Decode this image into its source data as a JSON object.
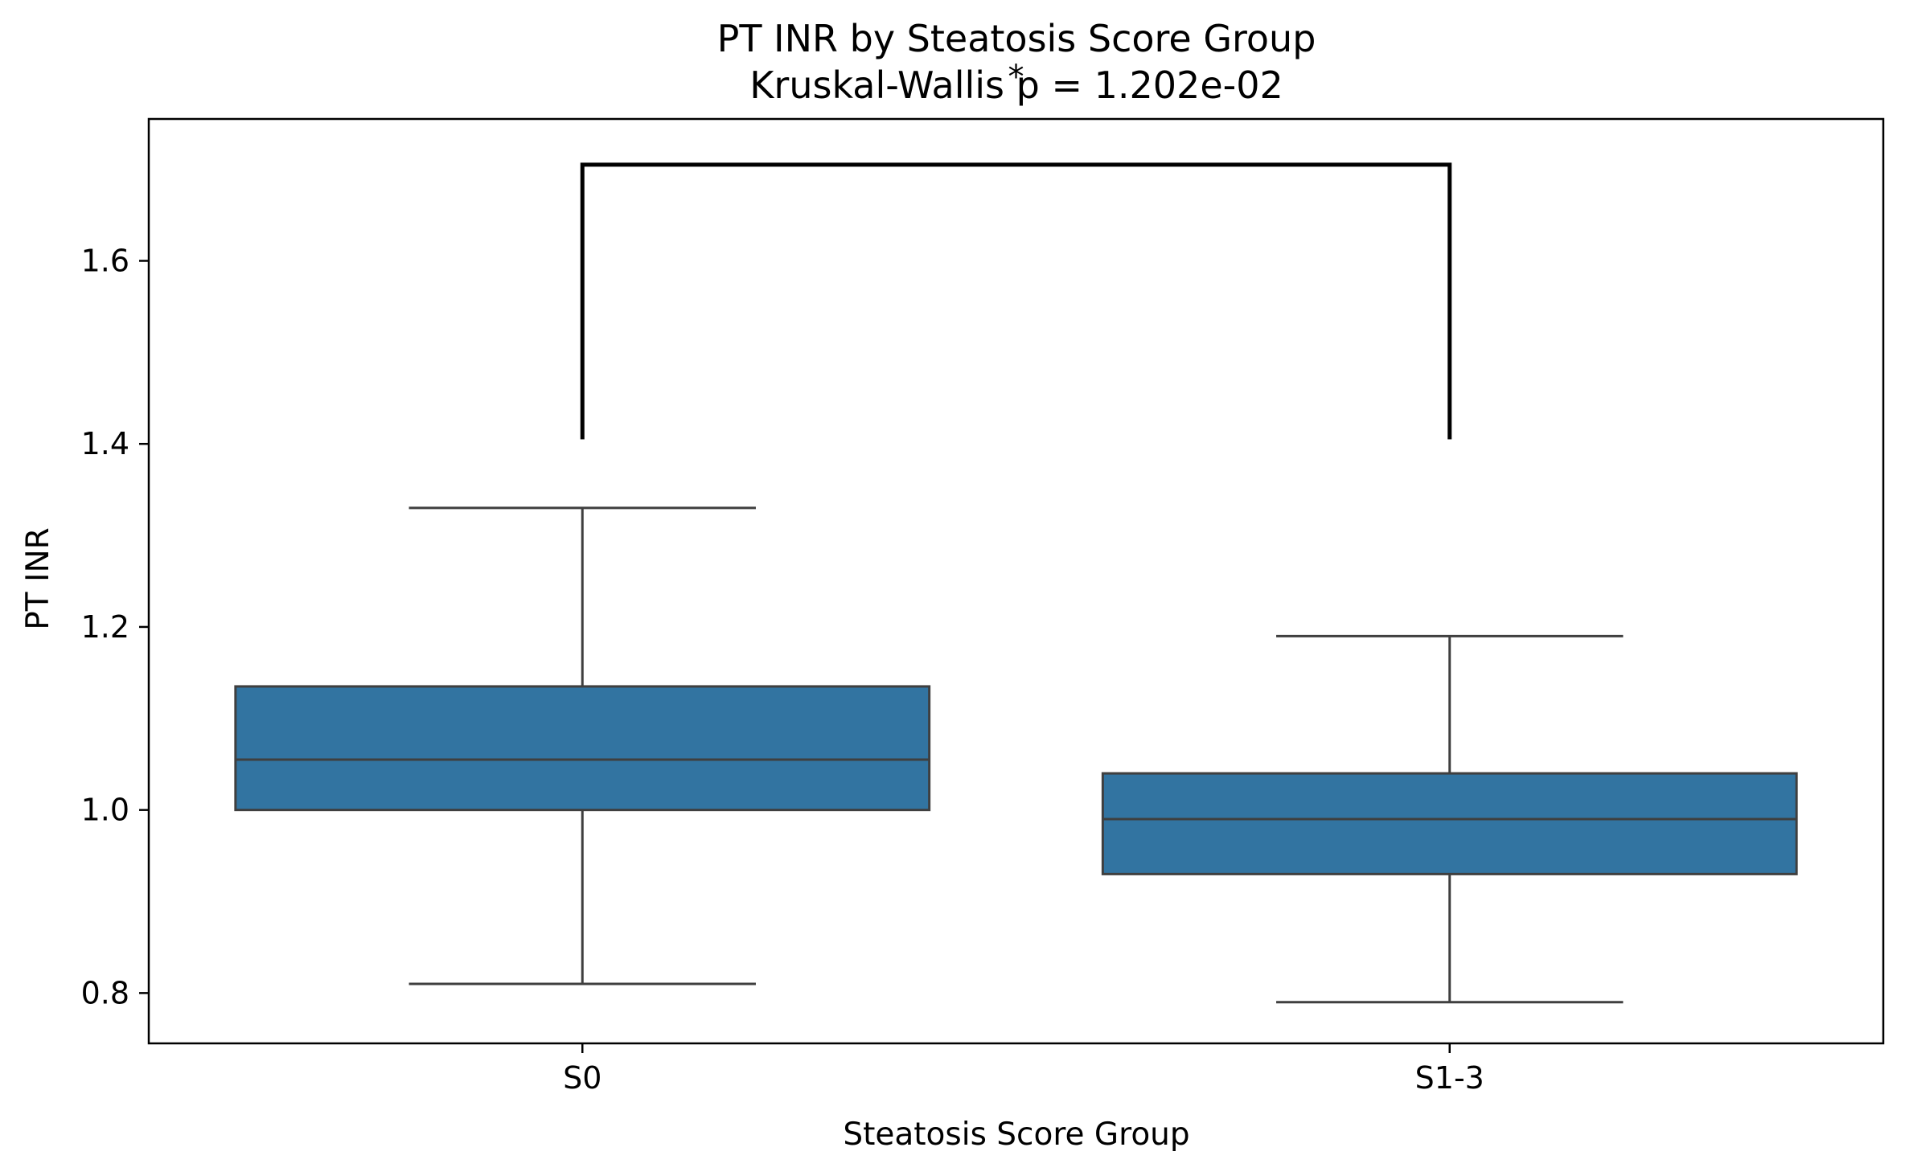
{
  "chart_data": {
    "type": "box",
    "title": "PT INR by Steatosis Score Group",
    "subtitle": "Kruskal-Wallis p = 1.202e-02",
    "xlabel": "Steatosis Score Group",
    "ylabel": "PT INR",
    "categories": [
      "S0",
      "S1-3"
    ],
    "boxes": [
      {
        "category": "S0",
        "whisker_low": 0.81,
        "q1": 1.0,
        "median": 1.055,
        "q3": 1.135,
        "whisker_high": 1.33
      },
      {
        "category": "S1-3",
        "whisker_low": 0.79,
        "q1": 0.93,
        "median": 0.99,
        "q3": 1.04,
        "whisker_high": 1.19
      }
    ],
    "y_ticks": [
      "0.8",
      "1.0",
      "1.2",
      "1.4",
      "1.6"
    ],
    "y_tick_values": [
      0.8,
      1.0,
      1.2,
      1.4,
      1.6
    ],
    "ylim": [
      0.745,
      1.755
    ],
    "significance": {
      "between": [
        "S0",
        "S1-3"
      ],
      "label": "*",
      "bracket_bottom": 1.405,
      "bracket_top": 1.705
    },
    "grid": false,
    "colors": {
      "box_fill": "#3274a1",
      "line": "#3f3f3f",
      "bracket": "#000000",
      "frame": "#000000"
    }
  }
}
